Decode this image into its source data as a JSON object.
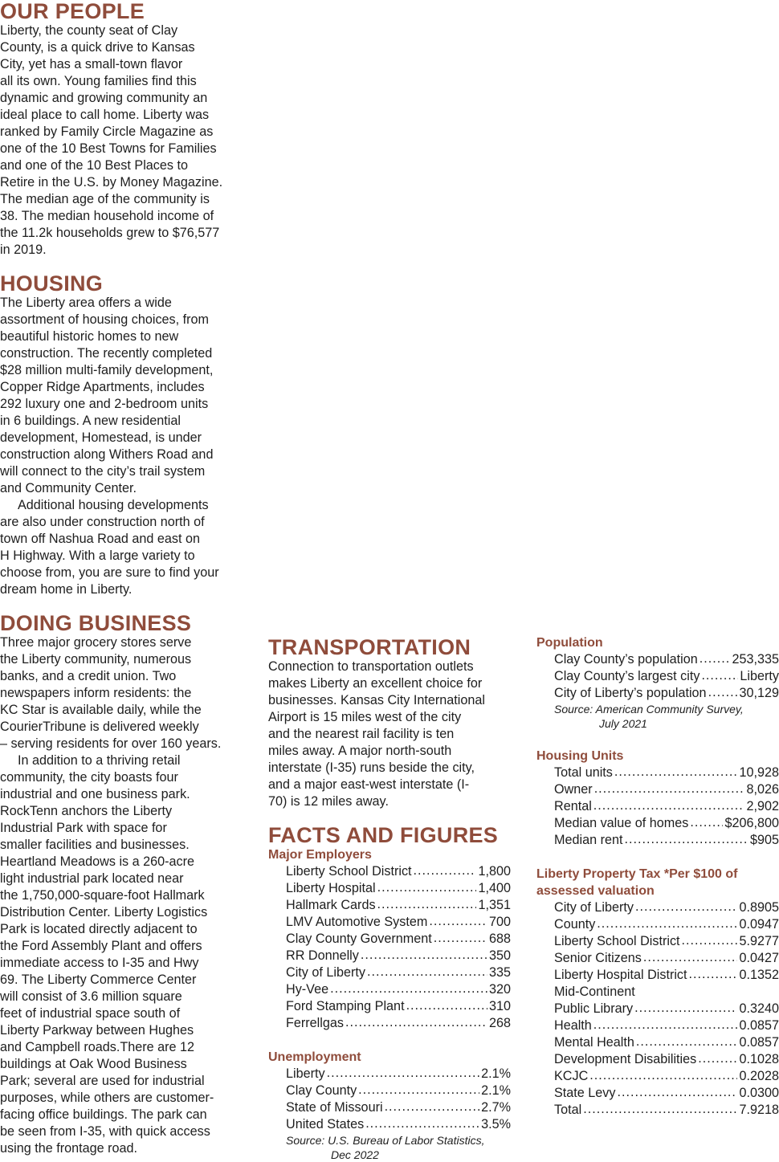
{
  "columns": [
    {
      "sections": [
        {
          "heading": "OUR PEOPLE",
          "paragraphs": [
            [
              "Liberty, the county seat of Clay",
              "County, is a quick drive to Kansas",
              "City, yet has a small-town flavor",
              "all its own. Young families find this",
              "dynamic and growing community an",
              "ideal place to call home. Liberty was",
              "ranked by Family Circle Magazine as",
              "one of the 10 Best Towns for Families",
              "and one of the 10 Best Places to",
              "Retire in the U.S. by Money Magazine.",
              "The median age of the community is",
              "38. The median household income of",
              "the 11.2k households grew to $76,577",
              "in 2019."
            ]
          ]
        },
        {
          "heading": "HOUSING",
          "paragraphs": [
            [
              "The Liberty area offers a wide",
              "assortment of housing choices, from",
              "beautiful historic homes to new",
              "construction. The recently completed",
              "$28 million multi-family development,",
              "Copper Ridge Apartments, includes",
              "292 luxury one and 2-bedroom units",
              "in 6 buildings. A new residential",
              "development, Homestead, is under",
              "construction along Withers Road and",
              "will connect to the city’s trail system",
              "and Community Center."
            ],
            [
              "Additional housing developments",
              "are also under construction north of",
              "town off Nashua Road and east on",
              "H Highway. With a large variety to",
              "choose from, you are sure to find your",
              "dream home in Liberty."
            ]
          ]
        },
        {
          "heading": "DOING BUSINESS",
          "paragraphs": [
            [
              "Three major grocery stores serve",
              "the Liberty community, numerous",
              "banks, and a credit union. Two",
              "newspapers inform residents: the",
              "KC Star is available daily, while the",
              "CourierTribune is delivered weekly",
              "– serving residents for over 160 years."
            ],
            [
              "In addition to a thriving retail",
              "community, the city boasts four",
              "industrial and one business park.",
              "RockTenn anchors the Liberty",
              "Industrial Park with space for",
              "smaller facilities and businesses.",
              "Heartland Meadows is a 260-acre",
              "light industrial park located near",
              "the 1,750,000-square-foot Hallmark",
              "Distribution Center. Liberty Logistics",
              "Park is located directly adjacent to",
              "the Ford Assembly Plant and offers",
              "immediate access to I-35 and Hwy",
              "69. The Liberty Commerce Center",
              "will consist of 3.6 million square",
              "feet of industrial space south of",
              "Liberty Parkway between Hughes",
              "and Campbell roads.There are 12",
              "buildings at Oak Wood Business",
              "Park; several are used for industrial",
              "purposes, while others are customer-",
              "facing office buildings. The park can",
              "be seen from I-35, with quick access",
              "using the frontage road."
            ]
          ]
        }
      ]
    },
    {
      "sections": [
        {
          "heading": "TRANSPORTATION",
          "paragraphs": [
            [
              "Connection to transportation outlets",
              "makes Liberty an excellent choice for",
              "businesses. Kansas City International",
              "Airport is 15 miles west of the city",
              "and the nearest rail facility is ten",
              "miles away. A major north-south",
              "interstate (I-35) runs beside the city,",
              "and a major east-west interstate (I-",
              "70) is 12 miles away."
            ]
          ]
        },
        {
          "heading": "FACTS AND FIGURES",
          "groups": [
            {
              "title": [
                "Major Employers"
              ],
              "rows": [
                {
                  "label": "Liberty School District",
                  "value": "1,800"
                },
                {
                  "label": "Liberty Hospital",
                  "value": "1,400"
                },
                {
                  "label": "Hallmark Cards",
                  "value": "1,351"
                },
                {
                  "label": "LMV Automotive System",
                  "value": "700"
                },
                {
                  "label": "Clay County Government",
                  "value": "688"
                },
                {
                  "label": "RR Donnelly",
                  "value": "350"
                },
                {
                  "label": "City of Liberty",
                  "value": "335"
                },
                {
                  "label": "Hy-Vee",
                  "value": "320"
                },
                {
                  "label": "Ford Stamping Plant",
                  "value": "310"
                },
                {
                  "label": "Ferrellgas",
                  "value": "268"
                }
              ]
            },
            {
              "title": [
                "Unemployment"
              ],
              "rows": [
                {
                  "label": "Liberty",
                  "value": "2.1%"
                },
                {
                  "label": "Clay County",
                  "value": "2.1%"
                },
                {
                  "label": "State of Missouri",
                  "value": "2.7%"
                },
                {
                  "label": "United States",
                  "value": "3.5%"
                }
              ],
              "source": [
                "Source: U.S. Bureau of Labor Statistics,",
                "Dec 2022"
              ]
            }
          ]
        }
      ]
    },
    {
      "sections": [
        {
          "groups": [
            {
              "title": [
                "Population"
              ],
              "rows": [
                {
                  "label": "Clay County’s population",
                  "value": "253,335"
                },
                {
                  "label": "Clay County’s largest city",
                  "value": "Liberty"
                },
                {
                  "label": "City of Liberty’s population",
                  "value": "30,129"
                }
              ],
              "source": [
                "Source: American Community Survey,",
                "July 2021"
              ]
            },
            {
              "title": [
                "Housing Units"
              ],
              "rows": [
                {
                  "label": "Total units",
                  "value": "10,928"
                },
                {
                  "label": "Owner",
                  "value": "8,026"
                },
                {
                  "label": "Rental",
                  "value": "2,902"
                },
                {
                  "label": "Median value of homes",
                  "value": "$206,800"
                },
                {
                  "label": "Median rent",
                  "value": "$905"
                }
              ]
            },
            {
              "title": [
                "Liberty Property Tax  *Per $100 of",
                "assessed valuation"
              ],
              "rows": [
                {
                  "label": "City of Liberty",
                  "value": "0.8905"
                },
                {
                  "label": "County",
                  "value": "0.0947"
                },
                {
                  "label": "Liberty School District",
                  "value": "5.9277"
                },
                {
                  "label": "Senior Citizens",
                  "value": "0.0427"
                },
                {
                  "label": "Liberty Hospital District",
                  "value": "0.1352"
                },
                {
                  "label": "Mid-Continent"
                },
                {
                  "label": "Public Library",
                  "value": "0.3240"
                },
                {
                  "label": "Health",
                  "value": "0.0857"
                },
                {
                  "label": "Mental Health",
                  "value": "0.0857"
                },
                {
                  "label": "Development Disabilities",
                  "value": "0.1028"
                },
                {
                  "label": "KCJC",
                  "value": "0.2028"
                },
                {
                  "label": "State Levy",
                  "value": "0.0300"
                },
                {
                  "label": "Total",
                  "value": "7.9218"
                }
              ]
            }
          ]
        }
      ]
    }
  ]
}
